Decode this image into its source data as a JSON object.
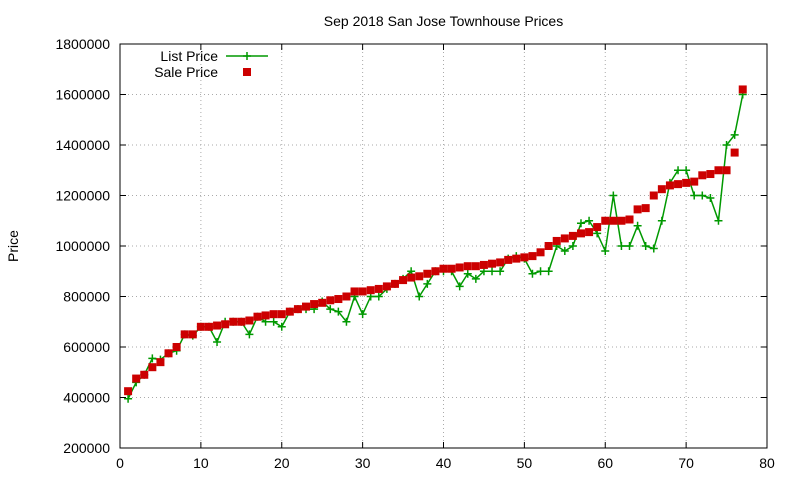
{
  "chart_data": {
    "type": "line",
    "title": "Sep 2018 San Jose Townhouse Prices",
    "xlabel": "",
    "ylabel": "Price",
    "xlim": [
      0,
      80
    ],
    "ylim": [
      200000,
      1800000
    ],
    "x_ticks": [
      0,
      10,
      20,
      30,
      40,
      50,
      60,
      70,
      80
    ],
    "y_ticks": [
      200000,
      400000,
      600000,
      800000,
      1000000,
      1200000,
      1400000,
      1600000,
      1800000
    ],
    "grid": true,
    "legend_position": "top-left",
    "series": [
      {
        "name": "List Price",
        "style": "line-with-plus",
        "color": "#009900",
        "x": [
          1,
          2,
          3,
          4,
          5,
          6,
          7,
          8,
          9,
          10,
          11,
          12,
          13,
          14,
          15,
          16,
          17,
          18,
          19,
          20,
          21,
          22,
          23,
          24,
          25,
          26,
          27,
          28,
          29,
          30,
          31,
          32,
          33,
          34,
          35,
          36,
          37,
          38,
          39,
          40,
          41,
          42,
          43,
          44,
          45,
          46,
          47,
          48,
          49,
          50,
          51,
          52,
          53,
          54,
          55,
          56,
          57,
          58,
          59,
          60,
          61,
          62,
          63,
          64,
          65,
          66,
          67,
          68,
          69,
          70,
          71,
          72,
          73,
          74,
          75,
          76,
          77
        ],
        "values": [
          395000,
          460000,
          490000,
          555000,
          550000,
          575000,
          585000,
          650000,
          645000,
          680000,
          680000,
          620000,
          700000,
          700000,
          700000,
          650000,
          720000,
          700000,
          700000,
          680000,
          740000,
          750000,
          750000,
          750000,
          780000,
          750000,
          740000,
          700000,
          800000,
          730000,
          800000,
          800000,
          830000,
          850000,
          870000,
          900000,
          800000,
          850000,
          900000,
          900000,
          900000,
          840000,
          890000,
          870000,
          900000,
          900000,
          900000,
          950000,
          960000,
          950000,
          890000,
          900000,
          900000,
          1000000,
          980000,
          1000000,
          1090000,
          1100000,
          1050000,
          980000,
          1200000,
          1000000,
          1000000,
          1080000,
          1000000,
          990000,
          1100000,
          1250000,
          1300000,
          1300000,
          1200000,
          1200000,
          1190000,
          1100000,
          1400000,
          1440000,
          1600000
        ]
      },
      {
        "name": "Sale Price",
        "style": "square-markers",
        "color": "#cc0000",
        "x": [
          1,
          2,
          3,
          4,
          5,
          6,
          7,
          8,
          9,
          10,
          11,
          12,
          13,
          14,
          15,
          16,
          17,
          18,
          19,
          20,
          21,
          22,
          23,
          24,
          25,
          26,
          27,
          28,
          29,
          30,
          31,
          32,
          33,
          34,
          35,
          36,
          37,
          38,
          39,
          40,
          41,
          42,
          43,
          44,
          45,
          46,
          47,
          48,
          49,
          50,
          51,
          52,
          53,
          54,
          55,
          56,
          57,
          58,
          59,
          60,
          61,
          62,
          63,
          64,
          65,
          66,
          67,
          68,
          69,
          70,
          71,
          72,
          73,
          74,
          75,
          76,
          77
        ],
        "values": [
          425000,
          475000,
          490000,
          520000,
          540000,
          575000,
          600000,
          650000,
          650000,
          680000,
          680000,
          685000,
          690000,
          700000,
          700000,
          705000,
          720000,
          725000,
          730000,
          730000,
          740000,
          750000,
          760000,
          770000,
          775000,
          785000,
          790000,
          800000,
          820000,
          820000,
          825000,
          830000,
          840000,
          850000,
          865000,
          875000,
          880000,
          890000,
          900000,
          910000,
          910000,
          915000,
          920000,
          920000,
          925000,
          930000,
          935000,
          945000,
          950000,
          955000,
          960000,
          975000,
          1000000,
          1020000,
          1030000,
          1040000,
          1050000,
          1055000,
          1075000,
          1100000,
          1100000,
          1100000,
          1105000,
          1145000,
          1150000,
          1200000,
          1225000,
          1240000,
          1245000,
          1250000,
          1255000,
          1280000,
          1285000,
          1300000,
          1300000,
          1370000,
          1620000
        ]
      }
    ]
  }
}
